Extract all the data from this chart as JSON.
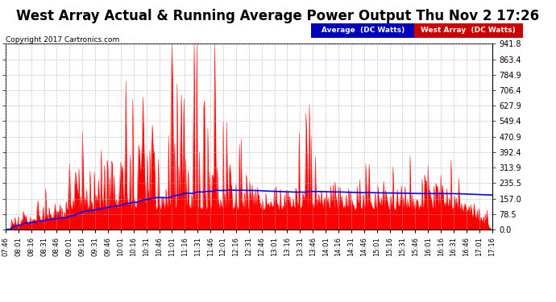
{
  "title": "West Array Actual & Running Average Power Output Thu Nov 2 17:26",
  "copyright": "Copyright 2017 Cartronics.com",
  "legend_labels": [
    "Average  (DC Watts)",
    "West Array  (DC Watts)"
  ],
  "y_max": 941.8,
  "y_min": 0.0,
  "y_ticks": [
    0.0,
    78.5,
    157.0,
    235.5,
    313.9,
    392.4,
    470.9,
    549.4,
    627.9,
    706.4,
    784.9,
    863.4,
    941.8
  ],
  "background_color": "#ffffff",
  "grid_color": "#aaaaaa",
  "title_color": "#000000",
  "title_fontsize": 12,
  "red_fill_color": "#ff0000",
  "blue_line_color": "#0000ff",
  "x_tick_labels": [
    "07:46",
    "08:01",
    "08:16",
    "08:31",
    "08:46",
    "09:01",
    "09:16",
    "09:31",
    "09:46",
    "10:01",
    "10:16",
    "10:31",
    "10:46",
    "11:01",
    "11:16",
    "11:31",
    "11:46",
    "12:01",
    "12:16",
    "12:31",
    "12:46",
    "13:01",
    "13:16",
    "13:31",
    "13:46",
    "14:01",
    "14:16",
    "14:31",
    "14:46",
    "15:01",
    "15:16",
    "15:31",
    "15:46",
    "16:01",
    "16:16",
    "16:31",
    "16:46",
    "17:01",
    "17:16"
  ]
}
